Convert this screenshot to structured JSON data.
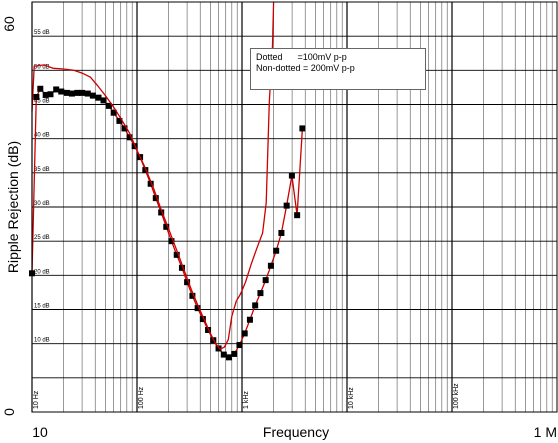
{
  "chart_data": {
    "type": "line",
    "title": "",
    "xlabel": "Frequency",
    "ylabel": "Ripple Rejection (dB)",
    "x_scale": "log",
    "xlim": [
      10,
      1000000
    ],
    "ylim": [
      0,
      60
    ],
    "grid": true,
    "x_ticks": [
      "10",
      "1 M"
    ],
    "y_ticks": [
      "0",
      "60"
    ],
    "decade_labels": [
      {
        "x": 10,
        "label": "10 Hz"
      },
      {
        "x": 100,
        "label": "100 Hz"
      },
      {
        "x": 1000,
        "label": "1 kHz"
      },
      {
        "x": 10000,
        "label": "10 kHz"
      },
      {
        "x": 100000,
        "label": "100 kHz"
      }
    ],
    "db_labels": [
      {
        "y": 55,
        "label": "55 dB"
      },
      {
        "y": 50,
        "label": "50 dB"
      },
      {
        "y": 45,
        "label": "45 dB"
      },
      {
        "y": 40,
        "label": "40 dB"
      },
      {
        "y": 35,
        "label": "35 dB"
      },
      {
        "y": 30,
        "label": "30 dB"
      },
      {
        "y": 25,
        "label": "25 dB"
      },
      {
        "y": 20,
        "label": "20 dB"
      },
      {
        "y": 15,
        "label": "15 dB"
      },
      {
        "y": 10,
        "label": "10 dB"
      }
    ],
    "legend_lines": [
      "Dotted      =100mV p-p",
      "Non-dotted = 200mV p-p"
    ],
    "series": [
      {
        "name": "Dotted",
        "style": "dotted",
        "color": "#cc0000",
        "marker_color": "#000000",
        "points": [
          [
            10,
            20.3
          ],
          [
            11,
            46.1
          ],
          [
            12,
            47.3
          ],
          [
            13.5,
            46.4
          ],
          [
            15,
            46.5
          ],
          [
            17,
            47.2
          ],
          [
            19,
            46.9
          ],
          [
            21.5,
            46.7
          ],
          [
            24,
            46.6
          ],
          [
            27,
            46.7
          ],
          [
            30,
            46.7
          ],
          [
            34,
            46.6
          ],
          [
            38,
            46.3
          ],
          [
            43,
            46.0
          ],
          [
            48,
            45.6
          ],
          [
            54,
            44.8
          ],
          [
            60,
            43.8
          ],
          [
            68,
            42.6
          ],
          [
            76,
            41.5
          ],
          [
            85,
            40.2
          ],
          [
            95,
            38.9
          ],
          [
            107,
            37.3
          ],
          [
            120,
            35.4
          ],
          [
            135,
            33.4
          ],
          [
            151,
            31.3
          ],
          [
            170,
            29.2
          ],
          [
            190,
            27.1
          ],
          [
            213,
            25.0
          ],
          [
            239,
            23.0
          ],
          [
            268,
            21.1
          ],
          [
            300,
            19.0
          ],
          [
            337,
            17.0
          ],
          [
            378,
            15.2
          ],
          [
            424,
            13.6
          ],
          [
            475,
            12.0
          ],
          [
            533,
            10.5
          ],
          [
            598,
            9.3
          ],
          [
            671,
            8.4
          ],
          [
            752,
            8.0
          ],
          [
            843,
            8.5
          ],
          [
            946,
            9.8
          ],
          [
            1061,
            11.5
          ],
          [
            1190,
            13.5
          ],
          [
            1335,
            15.6
          ],
          [
            1498,
            17.4
          ],
          [
            1680,
            19.3
          ],
          [
            1885,
            21.4
          ],
          [
            2115,
            23.6
          ],
          [
            2373,
            26.2
          ],
          [
            2662,
            30.2
          ],
          [
            2987,
            34.6
          ],
          [
            3351,
            28.8
          ],
          [
            3760,
            41.5
          ]
        ]
      },
      {
        "name": "Non-dotted",
        "style": "solid",
        "color": "#cc0000",
        "points": [
          [
            10,
            44.0
          ],
          [
            10.5,
            50.6
          ],
          [
            13,
            50.8
          ],
          [
            16,
            50.3
          ],
          [
            20,
            50.2
          ],
          [
            25,
            50.0
          ],
          [
            30,
            49.6
          ],
          [
            36,
            49.0
          ],
          [
            42,
            47.8
          ],
          [
            50,
            46.3
          ],
          [
            60,
            44.6
          ],
          [
            70,
            43.0
          ],
          [
            85,
            40.8
          ],
          [
            100,
            38.3
          ],
          [
            120,
            35.7
          ],
          [
            145,
            32.6
          ],
          [
            170,
            29.6
          ],
          [
            200,
            26.8
          ],
          [
            240,
            23.6
          ],
          [
            280,
            20.8
          ],
          [
            330,
            17.9
          ],
          [
            380,
            15.6
          ],
          [
            440,
            13.4
          ],
          [
            500,
            11.5
          ],
          [
            560,
            10.0
          ],
          [
            620,
            9.2
          ],
          [
            680,
            9.5
          ],
          [
            740,
            10.6
          ],
          [
            800,
            14.0
          ],
          [
            880,
            16.2
          ],
          [
            970,
            17.3
          ],
          [
            1080,
            19.0
          ],
          [
            1220,
            21.6
          ],
          [
            1380,
            23.9
          ],
          [
            1570,
            26.2
          ],
          [
            1700,
            30.6
          ],
          [
            1820,
            45.3
          ],
          [
            1950,
            53.6
          ],
          [
            2000,
            60.0
          ]
        ]
      }
    ]
  }
}
